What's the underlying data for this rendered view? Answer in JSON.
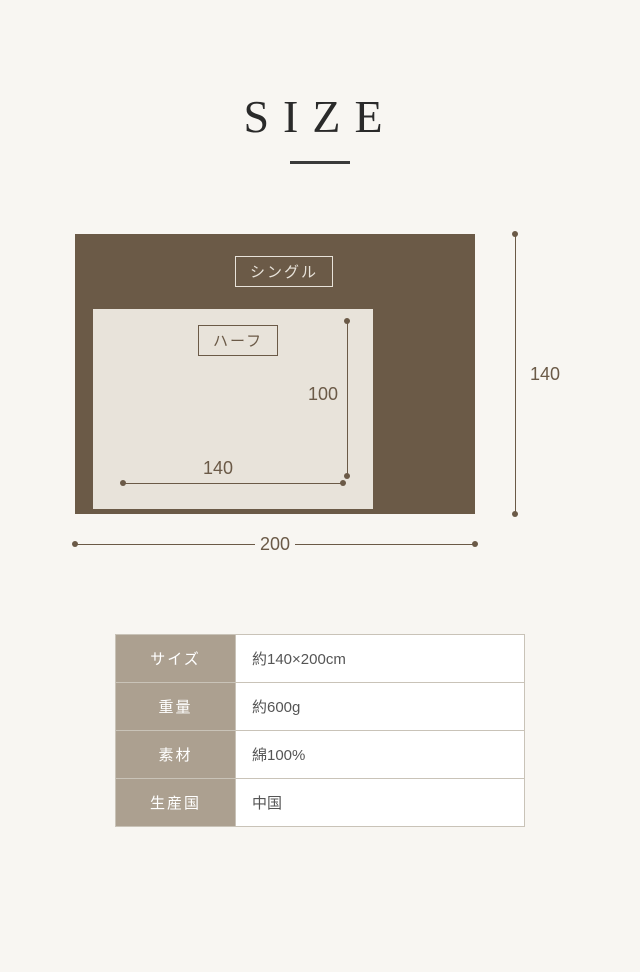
{
  "title": "SIZE",
  "diagram": {
    "outer": {
      "label": "シングル",
      "width_dim": "200",
      "height_dim": "140",
      "color": "#6b5a47"
    },
    "inner": {
      "label": "ハーフ",
      "width_dim": "140",
      "height_dim": "100",
      "color": "#e8e3da"
    }
  },
  "table": {
    "rows": [
      {
        "label": "サイズ",
        "value": "約140×200cm"
      },
      {
        "label": "重量",
        "value": "約600g"
      },
      {
        "label": "素材",
        "value": "綿100%"
      },
      {
        "label": "生産国",
        "value": "中国"
      }
    ]
  },
  "colors": {
    "background": "#f8f6f2",
    "brown": "#6b5a47",
    "beige": "#e8e3da",
    "table_header": "#aca090",
    "border": "#c9c3b8"
  }
}
